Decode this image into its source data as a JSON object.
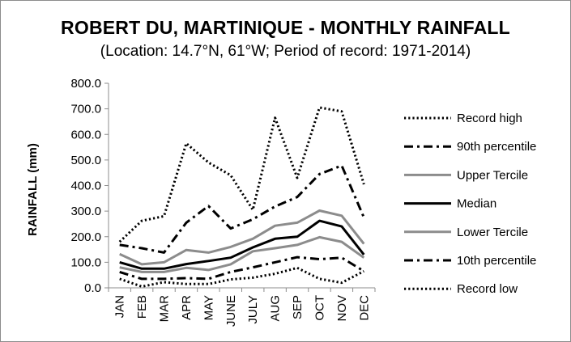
{
  "chart_data": {
    "type": "line",
    "title": "ROBERT DU, MARTINIQUE - MONTHLY RAINFALL",
    "subtitle": "(Location: 14.7°N, 61°W; Period of record: 1971-2014)",
    "xlabel": "",
    "ylabel": "RAINFALL (mm)",
    "ylim": [
      0,
      800
    ],
    "yticks": [
      "0.0",
      "100.0",
      "200.0",
      "300.0",
      "400.0",
      "500.0",
      "600.0",
      "700.0",
      "800.0"
    ],
    "grid": false,
    "legend_position": "right",
    "categories": [
      "JAN",
      "FEB",
      "MAR",
      "APR",
      "MAY",
      "JUNE",
      "JULY",
      "AUG",
      "SEP",
      "OCT",
      "NOV",
      "DEC"
    ],
    "series": [
      {
        "name": "Record high",
        "style": "dotted",
        "color": "#000000",
        "values": [
          180,
          262,
          280,
          565,
          490,
          440,
          305,
          665,
          430,
          705,
          690,
          405
        ]
      },
      {
        "name": "90th percentile",
        "style": "dashdot",
        "color": "#000000",
        "values": [
          168,
          155,
          138,
          255,
          320,
          232,
          268,
          318,
          355,
          445,
          478,
          275
        ]
      },
      {
        "name": "Upper Tercile",
        "style": "solid",
        "color": "#8c8c8c",
        "values": [
          132,
          92,
          100,
          148,
          138,
          160,
          192,
          243,
          255,
          302,
          282,
          172
        ]
      },
      {
        "name": "Median",
        "style": "solid",
        "color": "#000000",
        "values": [
          100,
          75,
          75,
          93,
          105,
          118,
          158,
          192,
          200,
          262,
          240,
          130
        ]
      },
      {
        "name": "Lower Tercile",
        "style": "solid",
        "color": "#8c8c8c",
        "values": [
          80,
          62,
          62,
          78,
          70,
          92,
          143,
          155,
          168,
          198,
          180,
          118
        ]
      },
      {
        "name": "10th percentile",
        "style": "dashdot",
        "color": "#000000",
        "values": [
          62,
          35,
          35,
          38,
          35,
          62,
          80,
          100,
          120,
          112,
          118,
          65
        ]
      },
      {
        "name": "Record low",
        "style": "dotted",
        "color": "#000000",
        "values": [
          35,
          5,
          22,
          15,
          15,
          33,
          40,
          55,
          78,
          35,
          20,
          65
        ]
      }
    ]
  }
}
